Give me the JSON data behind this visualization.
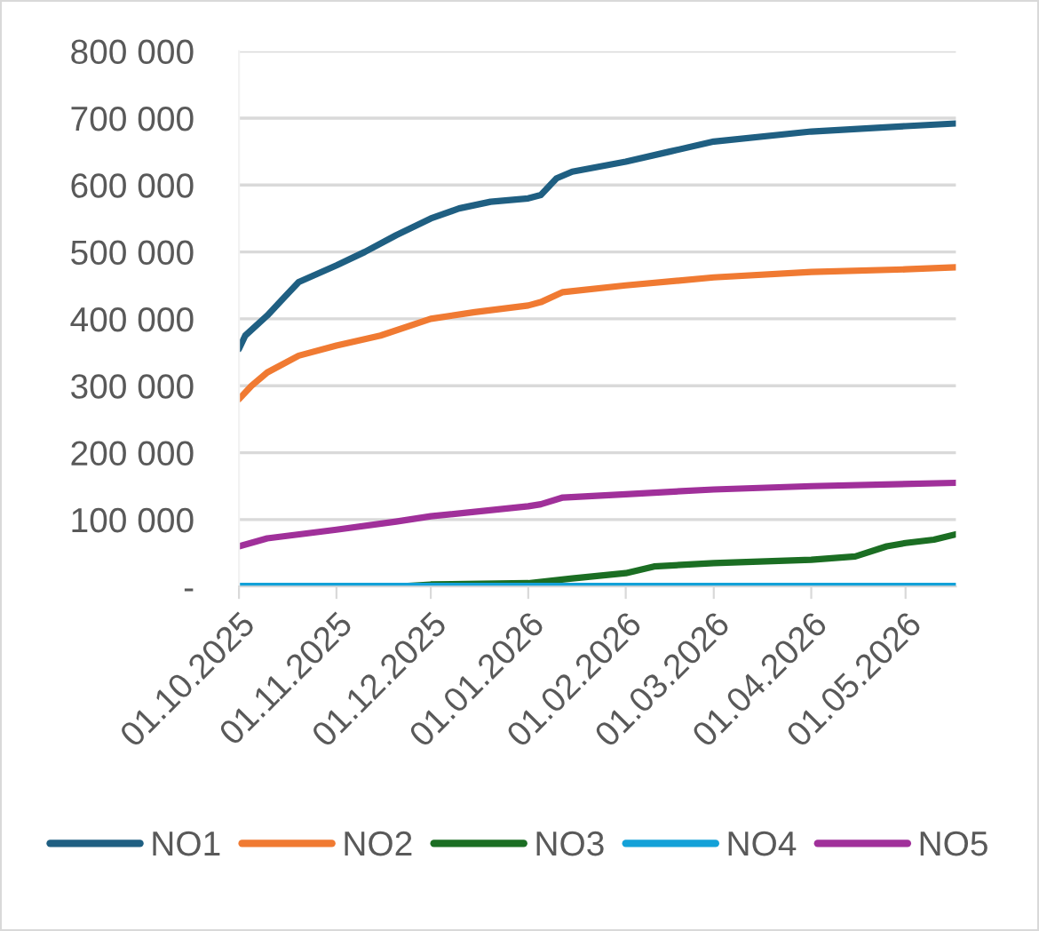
{
  "chart_data": {
    "type": "line",
    "xlim": [
      "2025-10-01",
      "2026-05-17"
    ],
    "ylim": [
      0,
      800000
    ],
    "xticks": [
      {
        "value": "2025-10-01",
        "label": "01.10.2025"
      },
      {
        "value": "2025-11-01",
        "label": "01.11.2025"
      },
      {
        "value": "2025-12-01",
        "label": "01.12.2025"
      },
      {
        "value": "2026-01-01",
        "label": "01.01.2026"
      },
      {
        "value": "2026-02-01",
        "label": "01.02.2026"
      },
      {
        "value": "2026-03-01",
        "label": "01.03.2026"
      },
      {
        "value": "2026-04-01",
        "label": "01.04.2026"
      },
      {
        "value": "2026-05-01",
        "label": "01.05.2026"
      }
    ],
    "yticks": [
      {
        "value": 0,
        "label": "-"
      },
      {
        "value": 100000,
        "label": "100 000"
      },
      {
        "value": 200000,
        "label": "200 000"
      },
      {
        "value": 300000,
        "label": "300 000"
      },
      {
        "value": 400000,
        "label": "400 000"
      },
      {
        "value": 500000,
        "label": "500 000"
      },
      {
        "value": 600000,
        "label": "600 000"
      },
      {
        "value": 700000,
        "label": "700 000"
      },
      {
        "value": 800000,
        "label": "800 000"
      }
    ],
    "grid": "y",
    "legend": "bottom",
    "marker": "none",
    "line_style": "solid",
    "series": [
      {
        "name": "NO1",
        "color": "#1f5f82",
        "x": [
          "2025-10-01",
          "2025-10-03",
          "2025-10-10",
          "2025-10-15",
          "2025-10-20",
          "2025-11-01",
          "2025-11-10",
          "2025-11-20",
          "2025-12-01",
          "2025-12-10",
          "2025-12-20",
          "2026-01-01",
          "2026-01-05",
          "2026-01-10",
          "2026-01-15",
          "2026-02-01",
          "2026-02-15",
          "2026-03-01",
          "2026-04-01",
          "2026-05-01",
          "2026-05-17"
        ],
        "values": [
          355000,
          375000,
          405000,
          430000,
          455000,
          480000,
          500000,
          525000,
          550000,
          565000,
          575000,
          580000,
          585000,
          610000,
          620000,
          635000,
          650000,
          665000,
          680000,
          688000,
          692000
        ]
      },
      {
        "name": "NO2",
        "color": "#f07a32",
        "x": [
          "2025-10-01",
          "2025-10-05",
          "2025-10-10",
          "2025-10-20",
          "2025-11-01",
          "2025-11-15",
          "2025-12-01",
          "2025-12-15",
          "2026-01-01",
          "2026-01-05",
          "2026-01-12",
          "2026-02-01",
          "2026-03-01",
          "2026-04-01",
          "2026-05-01",
          "2026-05-17"
        ],
        "values": [
          280000,
          300000,
          320000,
          345000,
          360000,
          375000,
          400000,
          410000,
          420000,
          425000,
          440000,
          450000,
          462000,
          470000,
          474000,
          477000
        ]
      },
      {
        "name": "NO3",
        "color": "#1b6e23",
        "x": [
          "2025-10-01",
          "2025-11-20",
          "2025-12-01",
          "2026-01-01",
          "2026-01-15",
          "2026-02-01",
          "2026-02-10",
          "2026-03-01",
          "2026-04-01",
          "2026-04-15",
          "2026-04-25",
          "2026-05-01",
          "2026-05-10",
          "2026-05-17"
        ],
        "values": [
          0,
          0,
          3000,
          5000,
          12000,
          20000,
          30000,
          35000,
          40000,
          45000,
          60000,
          65000,
          70000,
          78000
        ]
      },
      {
        "name": "NO4",
        "color": "#13a1d8",
        "x": [
          "2025-10-01",
          "2026-05-17"
        ],
        "values": [
          1000,
          1000
        ]
      },
      {
        "name": "NO5",
        "color": "#a0309a",
        "x": [
          "2025-10-01",
          "2025-10-10",
          "2025-11-01",
          "2025-11-20",
          "2025-12-01",
          "2026-01-01",
          "2026-01-05",
          "2026-01-12",
          "2026-02-01",
          "2026-03-01",
          "2026-04-01",
          "2026-05-17"
        ],
        "values": [
          60000,
          72000,
          85000,
          97000,
          105000,
          120000,
          123000,
          133000,
          138000,
          145000,
          150000,
          155000
        ]
      }
    ]
  }
}
